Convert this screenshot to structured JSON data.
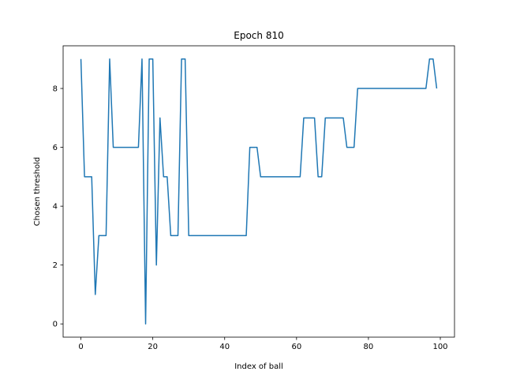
{
  "chart_data": {
    "type": "line",
    "title": "Epoch 810",
    "xlabel": "Index of ball",
    "ylabel": "Chosen threshold",
    "xlim": [
      -4.95,
      103.95
    ],
    "ylim": [
      -0.45,
      9.45
    ],
    "xticks": [
      0,
      20,
      40,
      60,
      80,
      100
    ],
    "yticks": [
      0,
      2,
      4,
      6,
      8
    ],
    "grid": false,
    "series": [
      {
        "color": "#1f77b4",
        "x": [
          0,
          1,
          2,
          3,
          4,
          5,
          6,
          7,
          8,
          9,
          10,
          11,
          12,
          13,
          14,
          15,
          16,
          17,
          18,
          19,
          20,
          21,
          22,
          23,
          24,
          25,
          26,
          27,
          28,
          29,
          30,
          31,
          32,
          33,
          34,
          35,
          36,
          37,
          38,
          39,
          40,
          41,
          42,
          43,
          44,
          45,
          46,
          47,
          48,
          49,
          50,
          51,
          52,
          53,
          54,
          55,
          56,
          57,
          58,
          59,
          60,
          61,
          62,
          63,
          64,
          65,
          66,
          67,
          68,
          69,
          70,
          71,
          72,
          73,
          74,
          75,
          76,
          77,
          78,
          79,
          80,
          81,
          82,
          83,
          84,
          85,
          86,
          87,
          88,
          89,
          90,
          91,
          92,
          93,
          94,
          95,
          96,
          97,
          98,
          99
        ],
        "values": [
          9,
          5,
          5,
          5,
          1,
          3,
          3,
          3,
          9,
          6,
          6,
          6,
          6,
          6,
          6,
          6,
          6,
          9,
          0,
          9,
          9,
          2,
          7,
          5,
          5,
          3,
          3,
          3,
          9,
          9,
          3,
          3,
          3,
          3,
          3,
          3,
          3,
          3,
          3,
          3,
          3,
          3,
          3,
          3,
          3,
          3,
          3,
          6,
          6,
          6,
          5,
          5,
          5,
          5,
          5,
          5,
          5,
          5,
          5,
          5,
          5,
          5,
          7,
          7,
          7,
          7,
          5,
          5,
          7,
          7,
          7,
          7,
          7,
          7,
          6,
          6,
          6,
          8,
          8,
          8,
          8,
          8,
          8,
          8,
          8,
          8,
          8,
          8,
          8,
          8,
          8,
          8,
          8,
          8,
          8,
          8,
          8,
          9,
          9,
          8
        ]
      }
    ]
  }
}
